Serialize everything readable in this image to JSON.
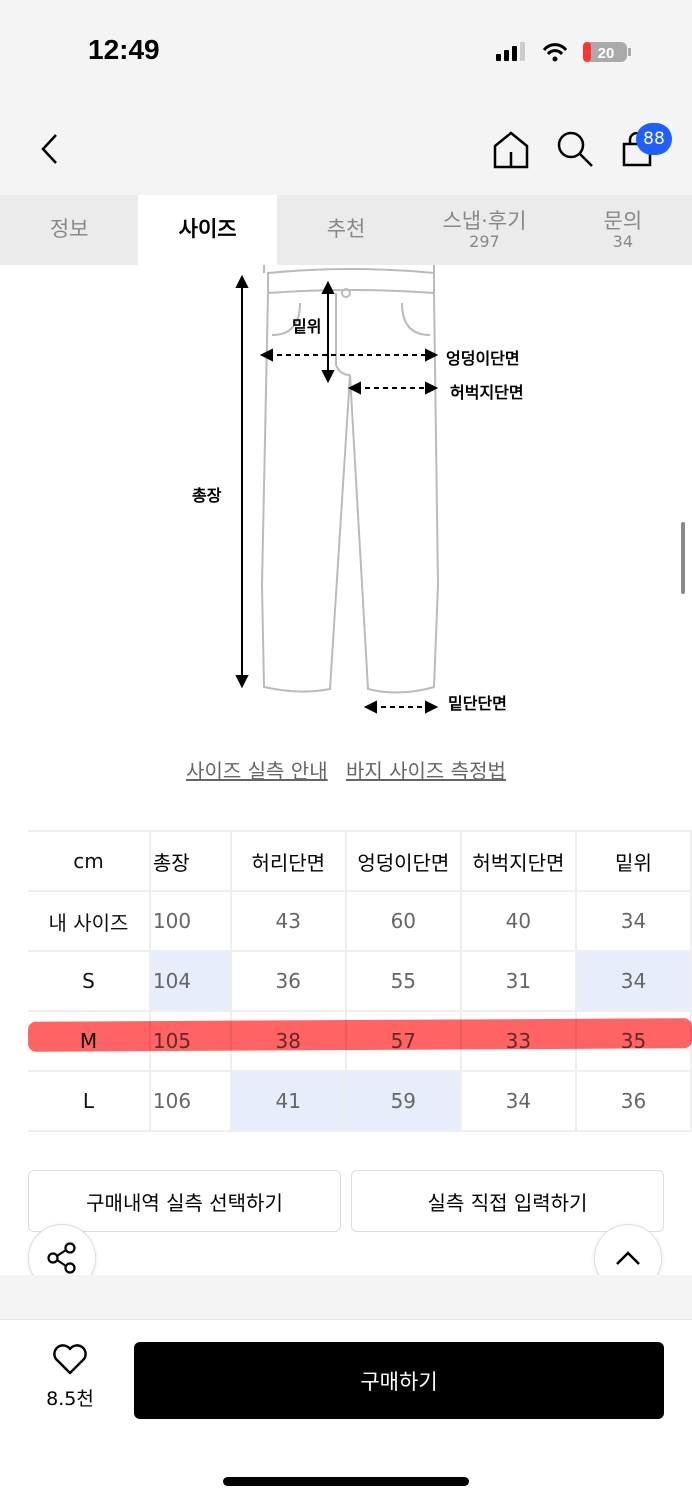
{
  "status": {
    "time": "12:49",
    "battery": "20"
  },
  "nav": {
    "cart_count": "88"
  },
  "tabs": [
    {
      "label": "정보"
    },
    {
      "label": "사이즈"
    },
    {
      "label": "추천"
    },
    {
      "label": "스냅·후기",
      "count": "297"
    },
    {
      "label": "문의",
      "count": "34"
    }
  ],
  "diagram": {
    "rise": "밑위",
    "hip": "엉덩이단면",
    "thigh": "허벅지단면",
    "length": "총장",
    "hem": "밑단단면"
  },
  "links": {
    "guide": "사이즈 실측 안내",
    "howto": "바지 사이즈 측정법"
  },
  "table": {
    "headers": [
      "cm",
      "총장",
      "허리단면",
      "엉덩이단면",
      "허벅지단면",
      "밑위"
    ],
    "rows": [
      [
        "내 사이즈",
        "100",
        "43",
        "60",
        "40",
        "34"
      ],
      [
        "S",
        "104",
        "36",
        "55",
        "31",
        "34"
      ],
      [
        "M",
        "105",
        "38",
        "57",
        "33",
        "35"
      ],
      [
        "L",
        "106",
        "41",
        "59",
        "34",
        "36"
      ]
    ]
  },
  "buttons": {
    "history": "구매내역 실측 선택하기",
    "manual": "실측 직접 입력하기"
  },
  "bottom": {
    "likes": "8.5천",
    "buy": "구매하기"
  },
  "colors": {
    "highlight": "#e8edfb",
    "marker": "#ff3c3c",
    "badge": "#1f5eff"
  }
}
